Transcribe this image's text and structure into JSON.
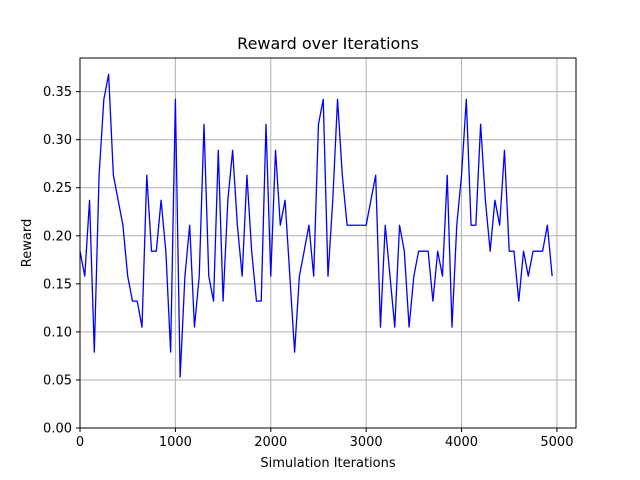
{
  "chart_data": {
    "type": "line",
    "title": "Reward over Iterations",
    "xlabel": "Simulation Iterations",
    "ylabel": "Reward",
    "xlim": [
      0,
      5200
    ],
    "ylim": [
      0,
      0.385
    ],
    "xticks": [
      0,
      1000,
      2000,
      3000,
      4000,
      5000
    ],
    "xtick_labels": [
      "0",
      "1000",
      "2000",
      "3000",
      "4000",
      "5000"
    ],
    "yticks": [
      0,
      0.05,
      0.1,
      0.15,
      0.2,
      0.25,
      0.3,
      0.35
    ],
    "ytick_labels": [
      "0.00",
      "0.05",
      "0.10",
      "0.15",
      "0.20",
      "0.25",
      "0.30",
      "0.35"
    ],
    "grid": true,
    "series": [
      {
        "color": "#0000ff",
        "x": [
          0,
          50,
          100,
          150,
          200,
          250,
          300,
          350,
          400,
          450,
          500,
          550,
          600,
          650,
          700,
          750,
          800,
          850,
          900,
          950,
          1000,
          1050,
          1100,
          1150,
          1200,
          1250,
          1300,
          1350,
          1400,
          1450,
          1500,
          1550,
          1600,
          1650,
          1700,
          1750,
          1800,
          1850,
          1900,
          1950,
          2000,
          2050,
          2100,
          2150,
          2200,
          2250,
          2300,
          2350,
          2400,
          2450,
          2500,
          2550,
          2600,
          2650,
          2700,
          2750,
          2800,
          2850,
          2900,
          2950,
          3000,
          3050,
          3100,
          3150,
          3200,
          3250,
          3300,
          3350,
          3400,
          3450,
          3500,
          3550,
          3600,
          3650,
          3700,
          3750,
          3800,
          3850,
          3900,
          3950,
          4000,
          4050,
          4100,
          4150,
          4200,
          4250,
          4300,
          4350,
          4400,
          4450,
          4500,
          4550,
          4600,
          4650,
          4700,
          4750,
          4800,
          4850,
          4900,
          4950
        ],
        "y": [
          0.184,
          0.158,
          0.237,
          0.079,
          0.263,
          0.342,
          0.368,
          0.263,
          0.237,
          0.211,
          0.158,
          0.132,
          0.132,
          0.105,
          0.263,
          0.184,
          0.184,
          0.237,
          0.184,
          0.079,
          0.342,
          0.053,
          0.158,
          0.211,
          0.105,
          0.158,
          0.316,
          0.158,
          0.132,
          0.289,
          0.132,
          0.237,
          0.289,
          0.211,
          0.158,
          0.263,
          0.184,
          0.132,
          0.132,
          0.316,
          0.158,
          0.289,
          0.211,
          0.237,
          0.158,
          0.079,
          0.158,
          0.184,
          0.211,
          0.158,
          0.316,
          0.342,
          0.158,
          0.237,
          0.342,
          0.263,
          0.211,
          0.211,
          0.211,
          0.211,
          0.211,
          0.237,
          0.263,
          0.105,
          0.211,
          0.158,
          0.105,
          0.211,
          0.184,
          0.105,
          0.158,
          0.184,
          0.184,
          0.184,
          0.132,
          0.184,
          0.158,
          0.263,
          0.105,
          0.211,
          0.263,
          0.342,
          0.211,
          0.211,
          0.316,
          0.237,
          0.184,
          0.237,
          0.211,
          0.289,
          0.184,
          0.184,
          0.132,
          0.184,
          0.158,
          0.184,
          0.184,
          0.184,
          0.211,
          0.158
        ]
      }
    ]
  }
}
